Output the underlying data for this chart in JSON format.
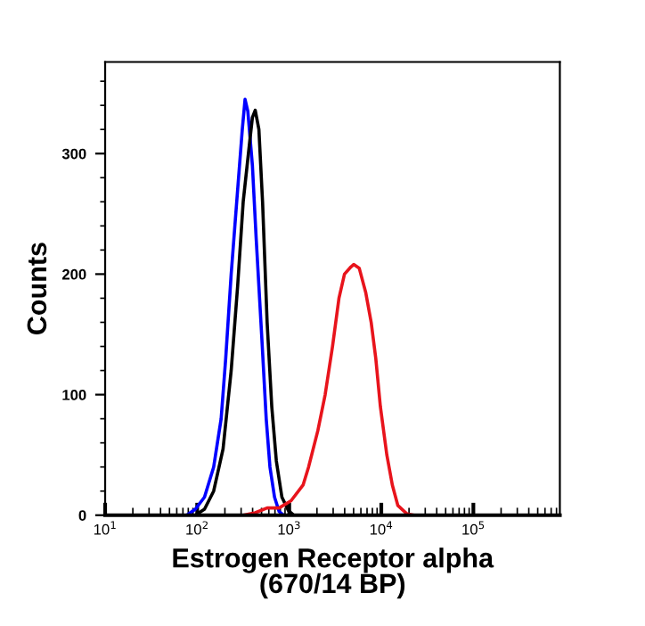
{
  "chart_data": {
    "type": "line",
    "xlabel": "Estrogen Receptor alpha\n(670/14 BP)",
    "ylabel": "Counts",
    "log": "x",
    "grid": false,
    "legend": false,
    "marker": "none",
    "line_style": "solid",
    "xlim": [
      10,
      870000
    ],
    "xticks": [
      {
        "value": 10,
        "label": "10$^{1}$"
      },
      {
        "value": 100,
        "label": "10$^{2}$"
      },
      {
        "value": 1000,
        "label": "10$^{3}$"
      },
      {
        "value": 10000,
        "label": "10$^{4}$"
      },
      {
        "value": 100000,
        "label": "10$^{5}$"
      }
    ],
    "ylim": [
      0,
      376
    ],
    "yticks": [
      0,
      100,
      200,
      300
    ],
    "series": [
      {
        "color": "#0000ff",
        "x": [
          77.1,
          95.5,
          120,
          151,
          182,
          204,
          234,
          275,
          309,
          331,
          355,
          398,
          437,
          501,
          562,
          617,
          692,
          776,
          871
        ],
        "values": [
          0,
          5,
          15,
          40,
          80,
          130,
          200,
          270,
          320,
          345,
          335,
          290,
          230,
          150,
          80,
          40,
          15,
          3,
          0
        ]
      },
      {
        "color": "#000000",
        "x": [
          10,
          95.5,
          120,
          151,
          191,
          234,
          275,
          316,
          372,
          398,
          427,
          468,
          513,
          575,
          646,
          724,
          832,
          977,
          1122,
          870000
        ],
        "values": [
          0,
          0,
          5,
          20,
          55,
          120,
          190,
          260,
          310,
          330,
          336,
          320,
          260,
          160,
          90,
          45,
          15,
          4,
          0,
          0
        ]
      },
      {
        "color": "#e8141c",
        "x": [
          316,
          427,
          575,
          776,
          1047,
          1413,
          1622,
          2042,
          2455,
          2951,
          3467,
          3981,
          4677,
          5012,
          5754,
          6761,
          7762,
          8710,
          9772,
          11482,
          13183,
          15136,
          19055,
          22387
        ],
        "values": [
          0,
          2,
          6,
          6,
          12,
          25,
          40,
          70,
          100,
          140,
          180,
          200,
          206,
          208,
          205,
          185,
          160,
          130,
          90,
          50,
          25,
          8,
          1,
          0
        ]
      }
    ]
  }
}
